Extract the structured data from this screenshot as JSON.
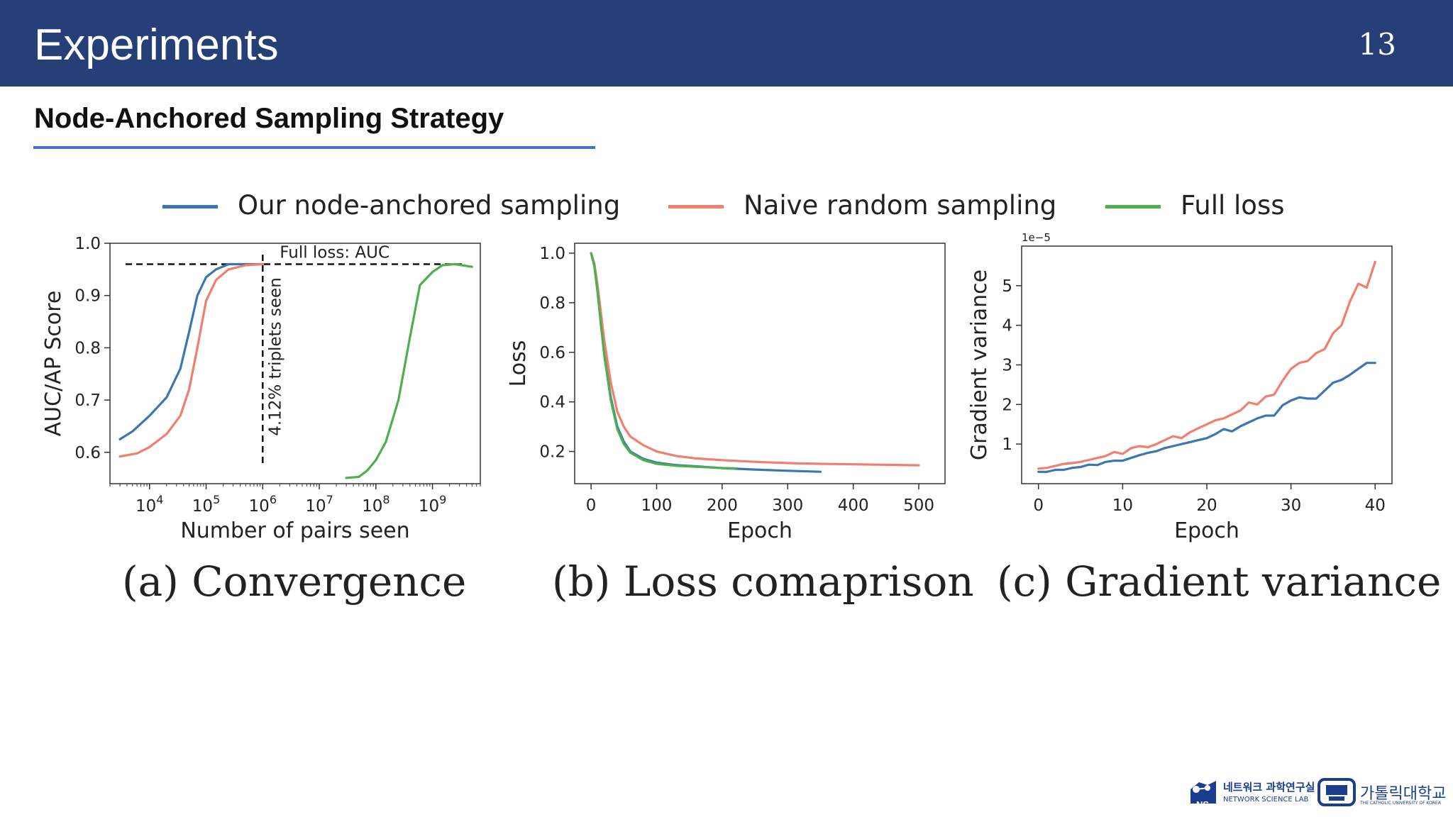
{
  "header": {
    "title": "Experiments",
    "page_number": "13"
  },
  "subtitle": "Node-Anchored Sampling Strategy",
  "legend": [
    {
      "label": "Our node-anchored sampling",
      "color": "#3a77b0"
    },
    {
      "label": "Naive random sampling",
      "color": "#f07f6f"
    },
    {
      "label": "Full loss",
      "color": "#4caf50"
    }
  ],
  "captions": [
    "(a) Convergence",
    "(b) Loss comaprison",
    "(c) Gradient variance"
  ],
  "footer": {
    "lab_name_kr": "네트워크 과학연구실",
    "lab_name_en": "NETWORK SCIENCE LAB",
    "lab_badge": "NS",
    "univ_name_kr": "가톨릭대학교",
    "univ_name_en": "THE CATHOLIC UNIVERSITY OF KOREA"
  },
  "chart_data": [
    {
      "type": "line",
      "xscale": "log",
      "xlabel": "Number of pairs seen",
      "ylabel": "AUC/AP Score",
      "xlim": [
        2000,
        7000000000
      ],
      "ylim": [
        0.54,
        1.0
      ],
      "xticks": [
        10000,
        100000,
        1000000,
        10000000,
        100000000,
        1000000000
      ],
      "xtick_labels": [
        {
          "base": "10",
          "exp": "4"
        },
        {
          "base": "10",
          "exp": "5"
        },
        {
          "base": "10",
          "exp": "6"
        },
        {
          "base": "10",
          "exp": "7"
        },
        {
          "base": "10",
          "exp": "8"
        },
        {
          "base": "10",
          "exp": "9"
        }
      ],
      "yticks": [
        0.6,
        0.7,
        0.8,
        0.9,
        1.0
      ],
      "ytick_labels": [
        "0.6",
        "0.7",
        "0.8",
        "0.9",
        "1.0"
      ],
      "hline": {
        "y": 0.96,
        "label": "Full loss: AUC"
      },
      "vline": {
        "x": 1000000,
        "label": "4.12% triplets seen"
      },
      "series": [
        {
          "name": "Our node-anchored sampling",
          "color": "#3a77b0",
          "x": [
            3000,
            5000,
            10000,
            20000,
            35000,
            50000,
            70000,
            100000,
            150000,
            250000,
            500000,
            1000000
          ],
          "y": [
            0.625,
            0.64,
            0.67,
            0.705,
            0.76,
            0.83,
            0.9,
            0.935,
            0.95,
            0.96,
            0.96,
            0.96
          ]
        },
        {
          "name": "Naive random sampling",
          "color": "#f07f6f",
          "x": [
            3000,
            6000,
            10000,
            20000,
            35000,
            50000,
            70000,
            100000,
            150000,
            250000,
            500000,
            1000000
          ],
          "y": [
            0.592,
            0.598,
            0.61,
            0.635,
            0.67,
            0.72,
            0.8,
            0.89,
            0.93,
            0.95,
            0.958,
            0.96
          ]
        },
        {
          "name": "Full loss",
          "color": "#4caf50",
          "x": [
            30000000,
            50000000,
            70000000,
            100000000,
            150000000,
            250000000,
            400000000,
            600000000,
            1000000000,
            1500000000,
            2500000000,
            5000000000
          ],
          "y": [
            0.551,
            0.553,
            0.565,
            0.585,
            0.62,
            0.7,
            0.82,
            0.92,
            0.945,
            0.958,
            0.96,
            0.955
          ]
        }
      ]
    },
    {
      "type": "line",
      "xlabel": "Epoch",
      "ylabel": "Loss",
      "xlim": [
        -25,
        540
      ],
      "ylim": [
        0.07,
        1.04
      ],
      "xticks": [
        0,
        100,
        200,
        300,
        400,
        500
      ],
      "xtick_labels": [
        "0",
        "100",
        "200",
        "300",
        "400",
        "500"
      ],
      "yticks": [
        0.2,
        0.4,
        0.6,
        0.8,
        1.0
      ],
      "ytick_labels": [
        "0.2",
        "0.4",
        "0.6",
        "0.8",
        "1.0"
      ],
      "series": [
        {
          "name": "Our node-anchored sampling",
          "color": "#3a77b0",
          "x": [
            0,
            5,
            10,
            15,
            20,
            30,
            40,
            50,
            60,
            80,
            100,
            130,
            160,
            200,
            250,
            300,
            350
          ],
          "y": [
            1.0,
            0.95,
            0.85,
            0.72,
            0.6,
            0.42,
            0.3,
            0.24,
            0.2,
            0.17,
            0.155,
            0.145,
            0.14,
            0.133,
            0.127,
            0.122,
            0.118
          ]
        },
        {
          "name": "Naive random sampling",
          "color": "#f07f6f",
          "x": [
            0,
            5,
            10,
            15,
            20,
            30,
            40,
            50,
            60,
            80,
            100,
            130,
            160,
            200,
            250,
            300,
            350,
            400,
            450,
            500
          ],
          "y": [
            1.0,
            0.96,
            0.87,
            0.76,
            0.65,
            0.48,
            0.36,
            0.3,
            0.26,
            0.225,
            0.2,
            0.182,
            0.172,
            0.165,
            0.158,
            0.153,
            0.15,
            0.148,
            0.146,
            0.144
          ]
        },
        {
          "name": "Full loss",
          "color": "#4caf50",
          "x": [
            0,
            5,
            10,
            15,
            20,
            30,
            40,
            50,
            60,
            80,
            100,
            130,
            160,
            200,
            220
          ],
          "y": [
            1.0,
            0.95,
            0.84,
            0.71,
            0.59,
            0.41,
            0.29,
            0.23,
            0.195,
            0.165,
            0.15,
            0.142,
            0.138,
            0.133,
            0.132
          ]
        }
      ]
    },
    {
      "type": "line",
      "xlabel": "Epoch",
      "ylabel": "Gradient variance",
      "offset_label": "1e−5",
      "xlim": [
        -2,
        42
      ],
      "ylim": [
        0,
        6
      ],
      "xticks": [
        0,
        10,
        20,
        30,
        40
      ],
      "xtick_labels": [
        "0",
        "10",
        "20",
        "30",
        "40"
      ],
      "yticks": [
        1,
        2,
        3,
        4,
        5
      ],
      "ytick_labels": [
        "1",
        "2",
        "3",
        "4",
        "5"
      ],
      "series": [
        {
          "name": "Our node-anchored sampling",
          "color": "#3a77b0",
          "x": [
            0,
            1,
            2,
            3,
            4,
            5,
            6,
            7,
            8,
            9,
            10,
            11,
            12,
            13,
            14,
            15,
            16,
            17,
            18,
            19,
            20,
            21,
            22,
            23,
            24,
            25,
            26,
            27,
            28,
            29,
            30,
            31,
            32,
            33,
            34,
            35,
            36,
            37,
            38,
            39,
            40
          ],
          "y": [
            0.3,
            0.3,
            0.35,
            0.35,
            0.4,
            0.42,
            0.48,
            0.47,
            0.55,
            0.58,
            0.58,
            0.65,
            0.72,
            0.78,
            0.82,
            0.9,
            0.95,
            1.0,
            1.05,
            1.1,
            1.15,
            1.25,
            1.38,
            1.32,
            1.45,
            1.55,
            1.65,
            1.72,
            1.72,
            1.98,
            2.1,
            2.18,
            2.15,
            2.15,
            2.35,
            2.55,
            2.62,
            2.75,
            2.9,
            3.05,
            3.05
          ]
        },
        {
          "name": "Naive random sampling",
          "color": "#f07f6f",
          "x": [
            0,
            1,
            2,
            3,
            4,
            5,
            6,
            7,
            8,
            9,
            10,
            11,
            12,
            13,
            14,
            15,
            16,
            17,
            18,
            19,
            20,
            21,
            22,
            23,
            24,
            25,
            26,
            27,
            28,
            29,
            30,
            31,
            32,
            33,
            34,
            35,
            36,
            37,
            38,
            39,
            40
          ],
          "y": [
            0.38,
            0.4,
            0.45,
            0.5,
            0.52,
            0.55,
            0.6,
            0.65,
            0.7,
            0.8,
            0.75,
            0.9,
            0.95,
            0.92,
            1.0,
            1.1,
            1.2,
            1.15,
            1.3,
            1.4,
            1.5,
            1.6,
            1.65,
            1.75,
            1.85,
            2.05,
            2.0,
            2.2,
            2.25,
            2.6,
            2.9,
            3.05,
            3.1,
            3.3,
            3.4,
            3.8,
            4.0,
            4.6,
            5.05,
            4.95,
            5.6
          ]
        }
      ]
    }
  ]
}
